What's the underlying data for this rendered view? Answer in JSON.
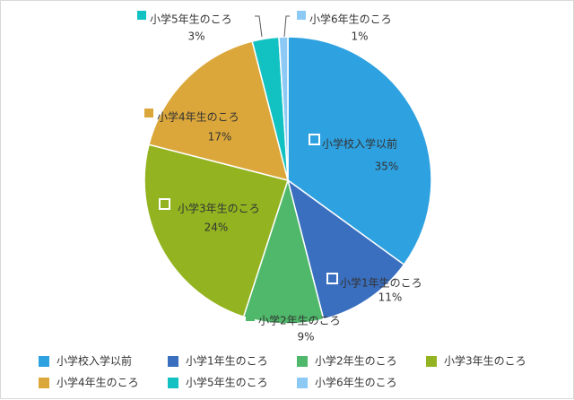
{
  "chart_data": {
    "type": "pie",
    "categories": [
      "小学校入学以前",
      "小学1年生のころ",
      "小学2年生のころ",
      "小学3年生のころ",
      "小学4年生のころ",
      "小学5年生のころ",
      "小学6年生のころ"
    ],
    "values": [
      35,
      11,
      9,
      24,
      17,
      3,
      1
    ],
    "percent_labels": [
      "35%",
      "11%",
      "9%",
      "24%",
      "17%",
      "3%",
      "1%"
    ],
    "colors": [
      "#2ea1e0",
      "#3a6fbf",
      "#4fb86a",
      "#93b420",
      "#dba73a",
      "#12c1c1",
      "#8ccaf5"
    ],
    "start_angle_deg": 0,
    "direction": "clockwise",
    "legend_position": "bottom"
  }
}
